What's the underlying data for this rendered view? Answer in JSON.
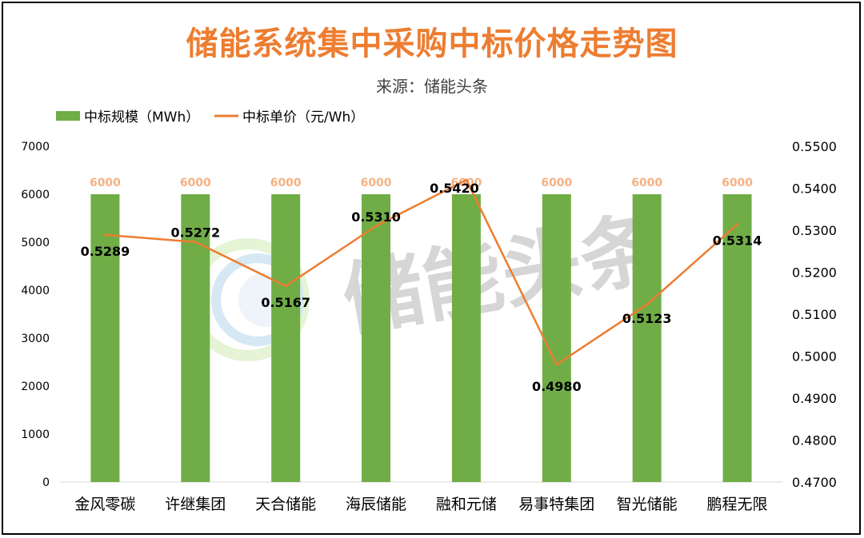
{
  "chart_data": {
    "type": "bar",
    "title": "储能系统集中采购中标价格走势图",
    "subtitle": "来源：储能头条",
    "watermark": "储能头条",
    "categories": [
      "金风零碳",
      "许继集团",
      "天合储能",
      "海辰储能",
      "融和元储",
      "易事特集团",
      "智光储能",
      "鹏程无限"
    ],
    "series": [
      {
        "name": "中标规模（MWh）",
        "type": "bar",
        "axis": "left",
        "color": "#70AD47",
        "label_color": "#F4B183",
        "values": [
          6000,
          6000,
          6000,
          6000,
          6000,
          6000,
          6000,
          6000
        ],
        "labels": [
          "6000",
          "6000",
          "6000",
          "6000",
          "6000",
          "6000",
          "6000",
          "6000"
        ]
      },
      {
        "name": "中标单价（元/Wh）",
        "type": "line",
        "axis": "right",
        "color": "#ED7D31",
        "values": [
          0.5289,
          0.5272,
          0.5167,
          0.531,
          0.542,
          0.498,
          0.5123,
          0.5314
        ],
        "labels": [
          "0.5289",
          "0.5272",
          "0.5167",
          "0.5310",
          "0.5420",
          "0.4980",
          "0.5123",
          "0.5314"
        ]
      }
    ],
    "y_left": {
      "min": 0,
      "max": 7000,
      "ticks": [
        "0",
        "1000",
        "2000",
        "3000",
        "4000",
        "5000",
        "6000",
        "7000"
      ]
    },
    "y_right": {
      "min": 0.47,
      "max": 0.55,
      "ticks": [
        "0.4700",
        "0.4800",
        "0.4900",
        "0.5000",
        "0.5100",
        "0.5200",
        "0.5300",
        "0.5400",
        "0.5500"
      ]
    },
    "grid": false,
    "legend": "top-left"
  }
}
